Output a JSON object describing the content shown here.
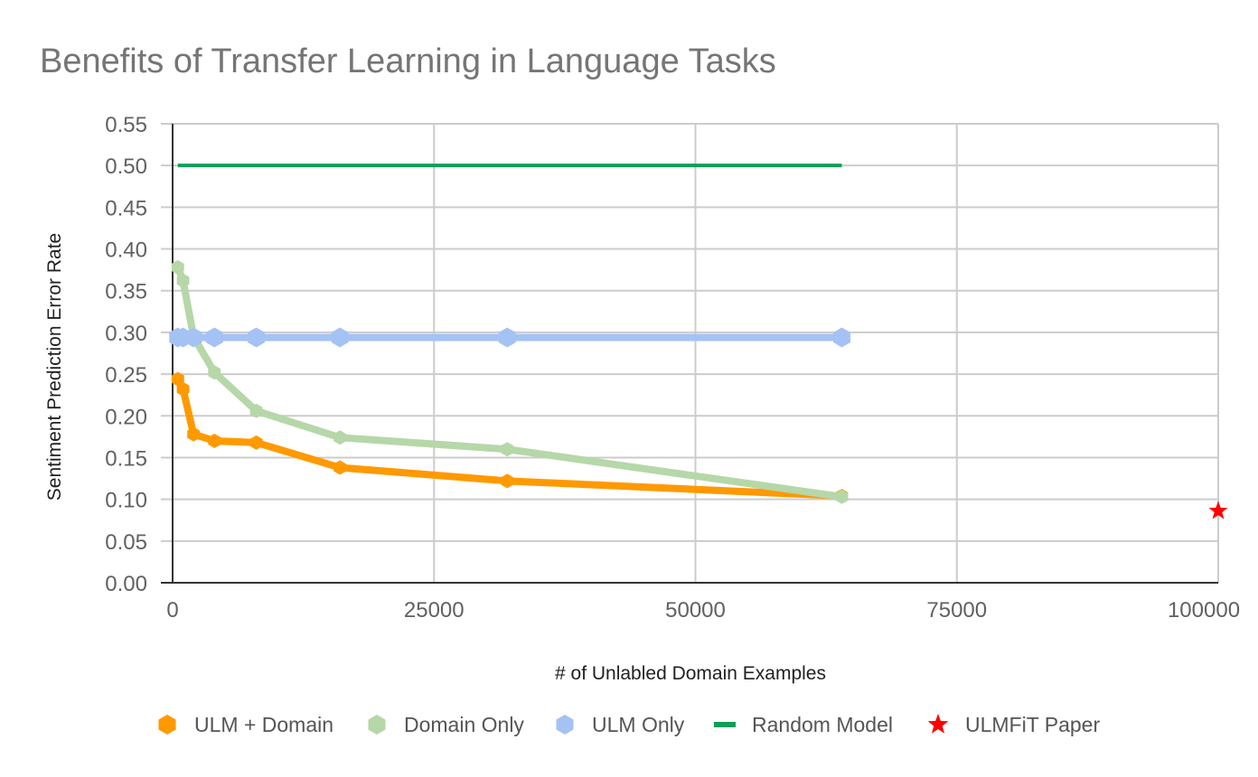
{
  "chart_data": {
    "type": "line",
    "title": "Benefits of Transfer Learning in Language Tasks",
    "xlabel": "# of Unlabled Domain Examples",
    "ylabel": "Sentiment Prediction Error Rate",
    "xlim": [
      0,
      100000
    ],
    "ylim": [
      0,
      0.55
    ],
    "x_ticks": [
      0,
      25000,
      50000,
      75000,
      100000
    ],
    "x_tick_labels": [
      "0",
      "25000",
      "50000",
      "75000",
      "100000"
    ],
    "y_ticks": [
      0,
      0.05,
      0.1,
      0.15,
      0.2,
      0.25,
      0.3,
      0.35,
      0.4,
      0.45,
      0.5,
      0.55
    ],
    "y_tick_labels": [
      "0.00",
      "0.05",
      "0.10",
      "0.15",
      "0.20",
      "0.25",
      "0.30",
      "0.35",
      "0.40",
      "0.45",
      "0.50",
      "0.55"
    ],
    "grid": true,
    "legend_position": "bottom",
    "series": [
      {
        "name": "ULM + Domain",
        "color": "#ff9900",
        "marker": "hexagon",
        "line": true,
        "points": [
          [
            500,
            0.244
          ],
          [
            1000,
            0.232
          ],
          [
            2000,
            0.178
          ],
          [
            4000,
            0.17
          ],
          [
            8000,
            0.168
          ],
          [
            16000,
            0.138
          ],
          [
            32000,
            0.122
          ],
          [
            64000,
            0.104
          ]
        ]
      },
      {
        "name": "Domain Only",
        "color": "#b6d7a8",
        "marker": "hexagon",
        "line": true,
        "points": [
          [
            500,
            0.378
          ],
          [
            1000,
            0.362
          ],
          [
            2000,
            0.295
          ],
          [
            4000,
            0.252
          ],
          [
            8000,
            0.206
          ],
          [
            16000,
            0.174
          ],
          [
            32000,
            0.16
          ],
          [
            64000,
            0.103
          ]
        ]
      },
      {
        "name": "ULM Only",
        "color": "#a4c2f4",
        "marker": "hexagon",
        "line": true,
        "points": [
          [
            500,
            0.294
          ],
          [
            1000,
            0.294
          ],
          [
            2000,
            0.294
          ],
          [
            4000,
            0.294
          ],
          [
            8000,
            0.294
          ],
          [
            16000,
            0.294
          ],
          [
            32000,
            0.294
          ],
          [
            64000,
            0.294
          ]
        ]
      },
      {
        "name": "Random Model",
        "color": "#0f9d58",
        "marker": "none",
        "line": true,
        "points": [
          [
            500,
            0.5
          ],
          [
            64000,
            0.5
          ]
        ]
      },
      {
        "name": "ULMFiT Paper",
        "color": "#ff0000",
        "marker": "star",
        "line": false,
        "points": [
          [
            100000,
            0.086
          ]
        ]
      }
    ]
  }
}
